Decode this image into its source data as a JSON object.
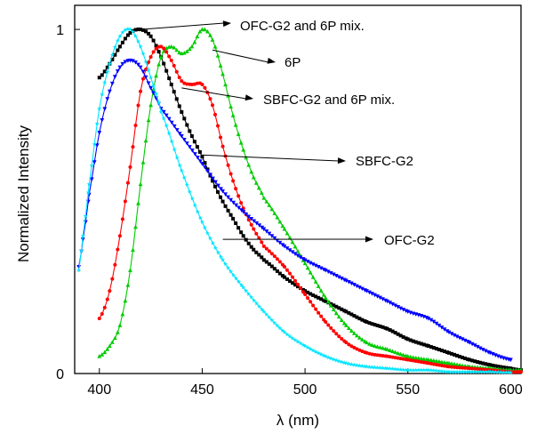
{
  "chart_data": {
    "type": "line",
    "xlabel": "λ (nm)",
    "ylabel": "Normalized Intensity",
    "xlim": [
      388,
      605
    ],
    "ylim": [
      0,
      1.07
    ],
    "xticks": [
      400,
      450,
      500,
      550,
      600
    ],
    "yticks": [
      0,
      1
    ],
    "grid": false,
    "series": [
      {
        "name": "OFC-G2 and 6P mix.",
        "color": "#000000",
        "marker": "square",
        "x": [
          400,
          405,
          410,
          415,
          420,
          425,
          430,
          435,
          440,
          445,
          450,
          455,
          460,
          465,
          470,
          475,
          480,
          490,
          500,
          510,
          520,
          530,
          540,
          550,
          560,
          570,
          580,
          590,
          600,
          605
        ],
        "y": [
          0.86,
          0.9,
          0.95,
          0.99,
          1.0,
          0.98,
          0.92,
          0.84,
          0.76,
          0.69,
          0.63,
          0.56,
          0.5,
          0.45,
          0.4,
          0.36,
          0.33,
          0.28,
          0.24,
          0.21,
          0.18,
          0.15,
          0.13,
          0.1,
          0.08,
          0.06,
          0.04,
          0.025,
          0.015,
          0.01
        ]
      },
      {
        "name": "6P",
        "color": "#00cc00",
        "marker": "triangle",
        "x": [
          400,
          405,
          410,
          415,
          420,
          425,
          430,
          435,
          440,
          445,
          450,
          455,
          460,
          465,
          470,
          475,
          480,
          490,
          500,
          510,
          520,
          530,
          540,
          550,
          560,
          570,
          580,
          590,
          600,
          605
        ],
        "y": [
          0.05,
          0.08,
          0.14,
          0.3,
          0.55,
          0.78,
          0.92,
          0.95,
          0.93,
          0.95,
          1.0,
          0.97,
          0.87,
          0.75,
          0.65,
          0.57,
          0.51,
          0.42,
          0.32,
          0.22,
          0.14,
          0.09,
          0.07,
          0.05,
          0.04,
          0.03,
          0.02,
          0.015,
          0.01,
          0.01
        ]
      },
      {
        "name": "SBFC-G2 and 6P mix.",
        "color": "#ff0000",
        "marker": "circle",
        "x": [
          400,
          405,
          410,
          415,
          420,
          425,
          430,
          435,
          440,
          445,
          450,
          455,
          460,
          465,
          470,
          475,
          480,
          490,
          500,
          510,
          520,
          530,
          540,
          550,
          560,
          570,
          580,
          590,
          600,
          605
        ],
        "y": [
          0.16,
          0.24,
          0.4,
          0.6,
          0.82,
          0.92,
          0.95,
          0.91,
          0.85,
          0.84,
          0.84,
          0.78,
          0.66,
          0.56,
          0.48,
          0.42,
          0.37,
          0.31,
          0.23,
          0.15,
          0.09,
          0.06,
          0.05,
          0.04,
          0.03,
          0.02,
          0.015,
          0.01,
          0.005,
          0.005
        ]
      },
      {
        "name": "SBFC-G2",
        "color": "#0000ff",
        "marker": "triangle-down",
        "x": [
          390,
          392,
          395,
          400,
          405,
          410,
          415,
          420,
          425,
          430,
          440,
          450,
          460,
          470,
          480,
          490,
          500,
          510,
          520,
          530,
          540,
          550,
          560,
          570,
          580,
          590,
          600
        ],
        "y": [
          0.31,
          0.39,
          0.52,
          0.7,
          0.82,
          0.89,
          0.91,
          0.89,
          0.83,
          0.77,
          0.69,
          0.61,
          0.53,
          0.47,
          0.42,
          0.37,
          0.33,
          0.3,
          0.27,
          0.24,
          0.21,
          0.18,
          0.16,
          0.12,
          0.09,
          0.06,
          0.04
        ]
      },
      {
        "name": "OFC-G2",
        "color": "#00e5ff",
        "marker": "star",
        "x": [
          390,
          392,
          395,
          400,
          405,
          410,
          415,
          420,
          425,
          430,
          440,
          450,
          460,
          470,
          480,
          490,
          500,
          510,
          520,
          530,
          540,
          550,
          560,
          570,
          580,
          590,
          600
        ],
        "y": [
          0.3,
          0.4,
          0.55,
          0.77,
          0.9,
          0.98,
          1.0,
          0.95,
          0.86,
          0.76,
          0.59,
          0.44,
          0.33,
          0.25,
          0.18,
          0.12,
          0.08,
          0.05,
          0.03,
          0.02,
          0.015,
          0.01,
          0.01,
          0.005,
          0.005,
          0.005,
          0.003
        ]
      }
    ],
    "annotations": [
      {
        "text": "OFC-G2 and 6P mix.",
        "series": "OFC-G2 and 6P mix.",
        "point": [
          420,
          1.0
        ]
      },
      {
        "text": "6P",
        "series": "6P",
        "point": [
          455,
          0.94
        ]
      },
      {
        "text": "SBFC-G2 and 6P mix.",
        "series": "SBFC-G2 and 6P mix.",
        "point": [
          440,
          0.83
        ]
      },
      {
        "text": "SBFC-G2",
        "series": "SBFC-G2",
        "point": [
          450,
          0.635
        ]
      },
      {
        "text": "OFC-G2",
        "series": "OFC-G2",
        "point": [
          460,
          0.39
        ]
      }
    ]
  }
}
